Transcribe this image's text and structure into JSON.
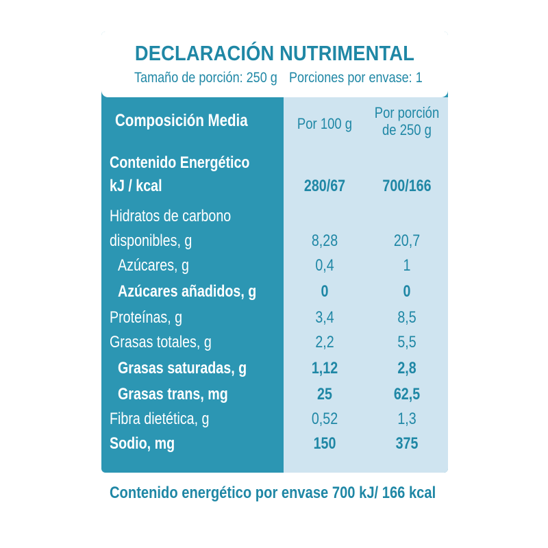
{
  "header": {
    "title": "DECLARACIÓN NUTRIMENTAL",
    "serving_size": "Tamaño de porción: 250 g",
    "servings_per_container": "Porciones por envase: 1"
  },
  "table": {
    "label_header": "Composición Media",
    "col1_header": "Por 100 g",
    "col2_header_line1": "Por porción",
    "col2_header_line2": "de 250 g",
    "energy_label_line1": "Contenido Energético",
    "energy_label_line2": "kJ / kcal",
    "energy_per100": "280/67",
    "energy_portion": "700/166",
    "carbs_label_line1": "Hidratos de carbono",
    "carbs_label_line2": "disponibles, g",
    "carbs_per100": "8,28",
    "carbs_portion": "20,7",
    "sugars_label": "Azúcares, g",
    "sugars_per100": "0,4",
    "sugars_portion": "1",
    "added_sugars_label": "Azúcares añadidos, g",
    "added_sugars_per100": "0",
    "added_sugars_portion": "0",
    "protein_label": "Proteínas, g",
    "protein_per100": "3,4",
    "protein_portion": "8,5",
    "fat_label": "Grasas totales, g",
    "fat_per100": "2,2",
    "fat_portion": "5,5",
    "sat_fat_label": "Grasas saturadas, g",
    "sat_fat_per100": "1,12",
    "sat_fat_portion": "2,8",
    "trans_fat_label": "Grasas trans, mg",
    "trans_fat_per100": "25",
    "trans_fat_portion": "62,5",
    "fiber_label": "Fibra dietética, g",
    "fiber_per100": "0,52",
    "fiber_portion": "1,3",
    "sodium_label": "Sodio, mg",
    "sodium_per100": "150",
    "sodium_portion": "375"
  },
  "footer": {
    "text": "Contenido energético por envase  700 kJ/ 166 kcal"
  },
  "colors": {
    "panel_blue": "#2c96b3",
    "text_blue": "#1f87a5",
    "light_column": "#cfe4f0"
  }
}
